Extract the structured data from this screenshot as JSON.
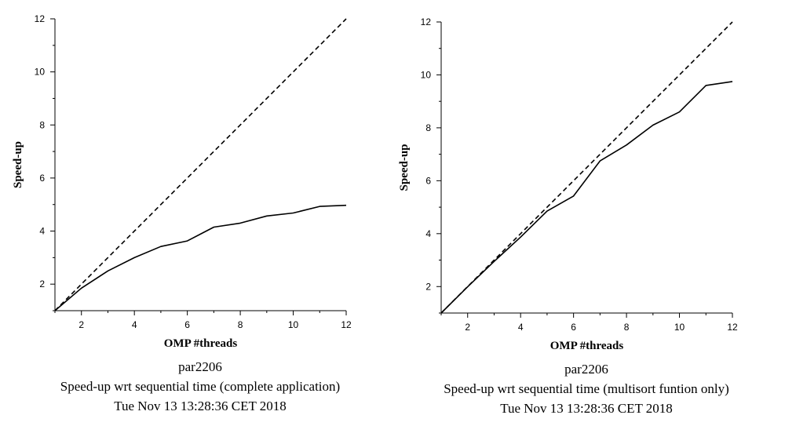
{
  "chart_data": [
    {
      "type": "line",
      "xlabel": "OMP #threads",
      "ylabel": "Speed-up",
      "xlim": [
        1,
        12
      ],
      "ylim": [
        1,
        12
      ],
      "xticks": [
        2,
        4,
        6,
        8,
        10,
        12
      ],
      "yticks": [
        2,
        4,
        6,
        8,
        10,
        12
      ],
      "grid": false,
      "caption": [
        "par2206",
        "Speed-up wrt sequential time (complete application)",
        "Tue Nov 13 13:28:36 CET 2018"
      ],
      "series": [
        {
          "style": "solid",
          "x": [
            1,
            2,
            3,
            4,
            5,
            6,
            7,
            8,
            9,
            10,
            11,
            12
          ],
          "values": [
            1.0,
            1.85,
            2.5,
            3.0,
            3.42,
            3.63,
            4.15,
            4.3,
            4.57,
            4.68,
            4.93,
            4.97
          ]
        },
        {
          "style": "dashed",
          "x": [
            1,
            12
          ],
          "values": [
            1,
            12
          ]
        }
      ]
    },
    {
      "type": "line",
      "xlabel": "OMP #threads",
      "ylabel": "Speed-up",
      "xlim": [
        1,
        12
      ],
      "ylim": [
        1,
        12
      ],
      "xticks": [
        2,
        4,
        6,
        8,
        10,
        12
      ],
      "yticks": [
        2,
        4,
        6,
        8,
        10,
        12
      ],
      "grid": false,
      "caption": [
        "par2206",
        "Speed-up wrt sequential time (multisort funtion only)",
        "Tue Nov 13 13:28:36 CET 2018"
      ],
      "series": [
        {
          "style": "solid",
          "x": [
            1,
            2,
            3,
            4,
            5,
            6,
            7,
            8,
            9,
            10,
            11,
            12
          ],
          "values": [
            1.0,
            1.99,
            2.95,
            3.87,
            4.85,
            5.42,
            6.75,
            7.35,
            8.1,
            8.6,
            9.6,
            9.75
          ]
        },
        {
          "style": "dashed",
          "x": [
            1,
            12
          ],
          "values": [
            1,
            12
          ]
        }
      ]
    }
  ]
}
